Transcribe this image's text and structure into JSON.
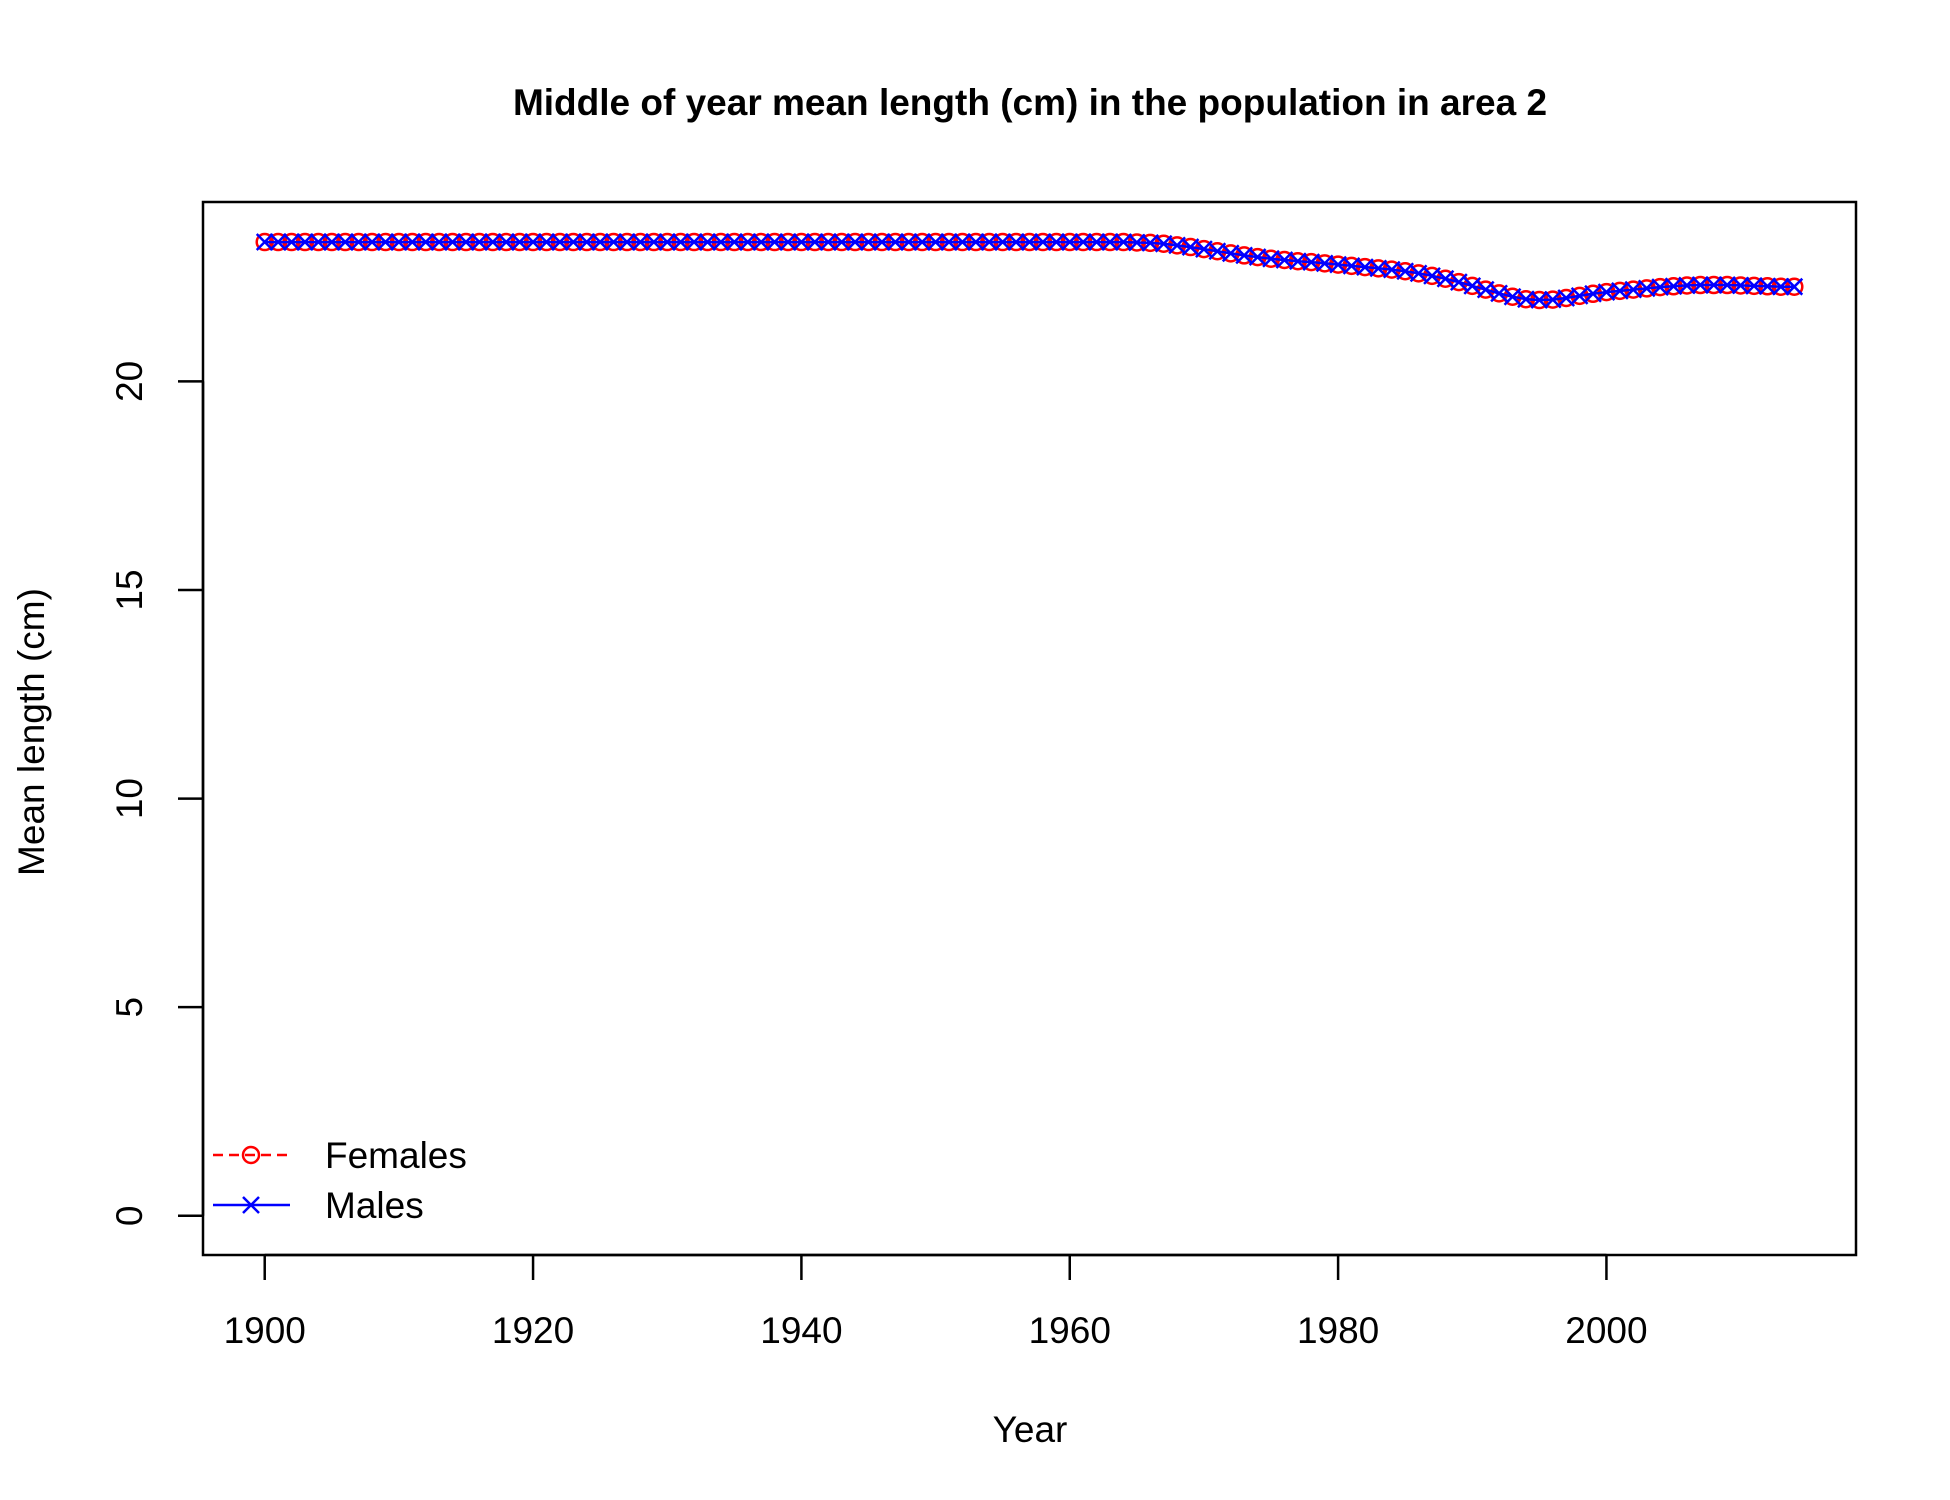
{
  "chart_data": {
    "type": "line",
    "title": "Middle of year mean length (cm) in the population in area 2",
    "xlabel": "Year",
    "ylabel": "Mean length (cm)",
    "xlim": [
      1895.4,
      2018.6
    ],
    "ylim": [
      -0.94,
      24.3
    ],
    "x_ticks": [
      1900,
      1920,
      1940,
      1960,
      1980,
      2000
    ],
    "y_ticks": [
      0,
      5,
      10,
      15,
      20
    ],
    "grid": false,
    "legend_position": "bottom-left",
    "colors": {
      "Females": "#ff0000",
      "Males": "#0000ff"
    },
    "x": [
      1900,
      1901,
      1902,
      1903,
      1904,
      1905,
      1906,
      1907,
      1908,
      1909,
      1910,
      1911,
      1912,
      1913,
      1914,
      1915,
      1916,
      1917,
      1918,
      1919,
      1920,
      1921,
      1922,
      1923,
      1924,
      1925,
      1926,
      1927,
      1928,
      1929,
      1930,
      1931,
      1932,
      1933,
      1934,
      1935,
      1936,
      1937,
      1938,
      1939,
      1940,
      1941,
      1942,
      1943,
      1944,
      1945,
      1946,
      1947,
      1948,
      1949,
      1950,
      1951,
      1952,
      1953,
      1954,
      1955,
      1956,
      1957,
      1958,
      1959,
      1960,
      1961,
      1962,
      1963,
      1964,
      1965,
      1966,
      1967,
      1968,
      1969,
      1970,
      1971,
      1972,
      1973,
      1974,
      1975,
      1976,
      1977,
      1978,
      1979,
      1980,
      1981,
      1982,
      1983,
      1984,
      1985,
      1986,
      1987,
      1988,
      1989,
      1990,
      1991,
      1992,
      1993,
      1994,
      1995,
      1996,
      1997,
      1998,
      1999,
      2000,
      2001,
      2002,
      2003,
      2004,
      2005,
      2006,
      2007,
      2008,
      2009,
      2010,
      2011,
      2012,
      2013,
      2014
    ],
    "series": [
      {
        "name": "Females",
        "line_style": "dashed",
        "marker": "circle",
        "values": [
          23.34,
          23.34,
          23.34,
          23.34,
          23.34,
          23.34,
          23.34,
          23.34,
          23.34,
          23.34,
          23.34,
          23.34,
          23.34,
          23.34,
          23.34,
          23.34,
          23.34,
          23.34,
          23.34,
          23.34,
          23.34,
          23.34,
          23.34,
          23.34,
          23.34,
          23.34,
          23.34,
          23.34,
          23.34,
          23.34,
          23.34,
          23.34,
          23.34,
          23.34,
          23.34,
          23.34,
          23.34,
          23.34,
          23.34,
          23.34,
          23.34,
          23.34,
          23.34,
          23.34,
          23.34,
          23.34,
          23.34,
          23.34,
          23.34,
          23.34,
          23.34,
          23.34,
          23.34,
          23.34,
          23.34,
          23.34,
          23.34,
          23.34,
          23.34,
          23.34,
          23.34,
          23.34,
          23.34,
          23.34,
          23.34,
          23.33,
          23.32,
          23.3,
          23.26,
          23.22,
          23.17,
          23.12,
          23.07,
          23.02,
          22.98,
          22.94,
          22.91,
          22.88,
          22.86,
          22.83,
          22.8,
          22.77,
          22.74,
          22.71,
          22.68,
          22.64,
          22.59,
          22.53,
          22.46,
          22.38,
          22.29,
          22.2,
          22.11,
          22.03,
          21.97,
          21.95,
          21.96,
          22.0,
          22.05,
          22.1,
          22.14,
          22.17,
          22.2,
          22.23,
          22.26,
          22.28,
          22.3,
          22.31,
          22.31,
          22.31,
          22.3,
          22.29,
          22.28,
          22.27,
          22.27
        ]
      },
      {
        "name": "Males",
        "line_style": "solid",
        "marker": "x",
        "values": [
          23.34,
          23.34,
          23.34,
          23.34,
          23.34,
          23.34,
          23.34,
          23.34,
          23.34,
          23.34,
          23.34,
          23.34,
          23.34,
          23.34,
          23.34,
          23.34,
          23.34,
          23.34,
          23.34,
          23.34,
          23.34,
          23.34,
          23.34,
          23.34,
          23.34,
          23.34,
          23.34,
          23.34,
          23.34,
          23.34,
          23.34,
          23.34,
          23.34,
          23.34,
          23.34,
          23.34,
          23.34,
          23.34,
          23.34,
          23.34,
          23.34,
          23.34,
          23.34,
          23.34,
          23.34,
          23.34,
          23.34,
          23.34,
          23.34,
          23.34,
          23.34,
          23.34,
          23.34,
          23.34,
          23.34,
          23.34,
          23.34,
          23.34,
          23.34,
          23.34,
          23.34,
          23.34,
          23.34,
          23.34,
          23.34,
          23.33,
          23.32,
          23.3,
          23.26,
          23.22,
          23.17,
          23.12,
          23.07,
          23.02,
          22.98,
          22.94,
          22.91,
          22.88,
          22.86,
          22.83,
          22.8,
          22.77,
          22.74,
          22.71,
          22.68,
          22.64,
          22.59,
          22.53,
          22.46,
          22.38,
          22.29,
          22.2,
          22.11,
          22.03,
          21.97,
          21.95,
          21.96,
          22.0,
          22.05,
          22.1,
          22.14,
          22.17,
          22.2,
          22.23,
          22.26,
          22.28,
          22.3,
          22.31,
          22.31,
          22.31,
          22.3,
          22.29,
          22.28,
          22.27,
          22.27
        ]
      }
    ]
  }
}
